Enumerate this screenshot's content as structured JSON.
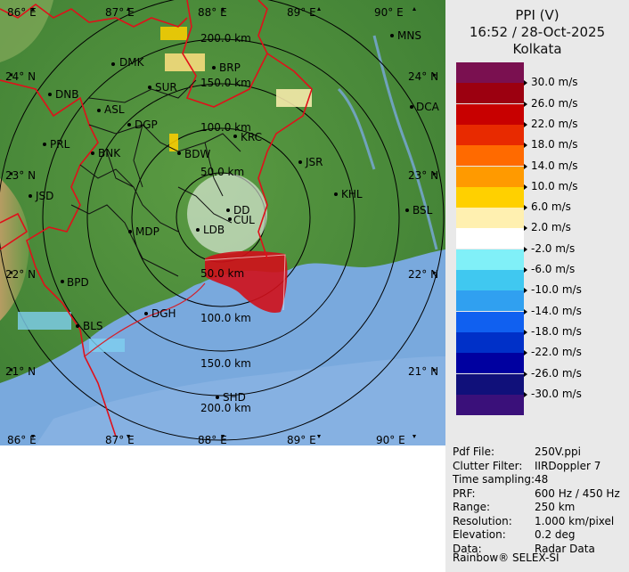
{
  "header": {
    "line1": "PPI (V)",
    "line2": "16:52 / 28-Oct-2025",
    "line3": "Kolkata"
  },
  "legend": [
    {
      "label": "30.0 m/s",
      "color": "#7a1050"
    },
    {
      "label": "26.0 m/s",
      "color": "#9c0010"
    },
    {
      "label": "22.0 m/s",
      "color": "#c80000"
    },
    {
      "label": "18.0 m/s",
      "color": "#e82a00"
    },
    {
      "label": "14.0 m/s",
      "color": "#ff6a00"
    },
    {
      "label": "10.0 m/s",
      "color": "#ff9a00"
    },
    {
      "label": "6.0 m/s",
      "color": "#ffd000"
    },
    {
      "label": "2.0 m/s",
      "color": "#fff0b0"
    },
    {
      "label": "-2.0 m/s",
      "color": "#ffffff"
    },
    {
      "label": "-6.0 m/s",
      "color": "#80f0f8"
    },
    {
      "label": "-10.0 m/s",
      "color": "#40c8f0"
    },
    {
      "label": "-14.0 m/s",
      "color": "#30a0f0"
    },
    {
      "label": "-18.0 m/s",
      "color": "#1060f0"
    },
    {
      "label": "-22.0 m/s",
      "color": "#0030c8"
    },
    {
      "label": "-26.0 m/s",
      "color": "#0000a0"
    },
    {
      "label": "-30.0 m/s",
      "color": "#10107a"
    },
    {
      "label": "",
      "color": "#3a107a"
    }
  ],
  "info": [
    {
      "key": "Pdf File:",
      "value": "250V.ppi"
    },
    {
      "key": "Clutter Filter:",
      "value": "IIRDoppler 7"
    },
    {
      "key": "Time sampling:",
      "value": "48"
    },
    {
      "key": "PRF:",
      "value": "600 Hz / 450 Hz"
    },
    {
      "key": "Range:",
      "value": "250 km"
    },
    {
      "key": "Resolution:",
      "value": "1.000 km/pixel"
    },
    {
      "key": "Elevation:",
      "value": "0.2 deg"
    },
    {
      "key": "Data:",
      "value": "Radar Data"
    }
  ],
  "footer": "Rainbow® SELEX-SI",
  "map": {
    "lon_labels": [
      "86° E",
      "87° E",
      "88° E",
      "89° E",
      "90° E"
    ],
    "lat_labels": [
      "24° N",
      "23° N",
      "22° N",
      "21° N"
    ],
    "range_rings": [
      "50.0 km",
      "100.0 km",
      "150.0 km",
      "200.0 km"
    ],
    "stations": [
      "MNS",
      "DMK",
      "BRP",
      "DNB",
      "SUR",
      "ASL",
      "DCA",
      "DGP",
      "PRL",
      "KRC",
      "BNK",
      "BDW",
      "JSR",
      "JSD",
      "KHL",
      "DD",
      "BSL",
      "MDP",
      "LDB",
      "CUL",
      "BPD",
      "DGH",
      "BLS",
      "SHD"
    ],
    "colors": {
      "land": "#4e8e3c",
      "sea": "#79a9dd",
      "boundary": "#e0101a",
      "district": "#111111"
    }
  }
}
